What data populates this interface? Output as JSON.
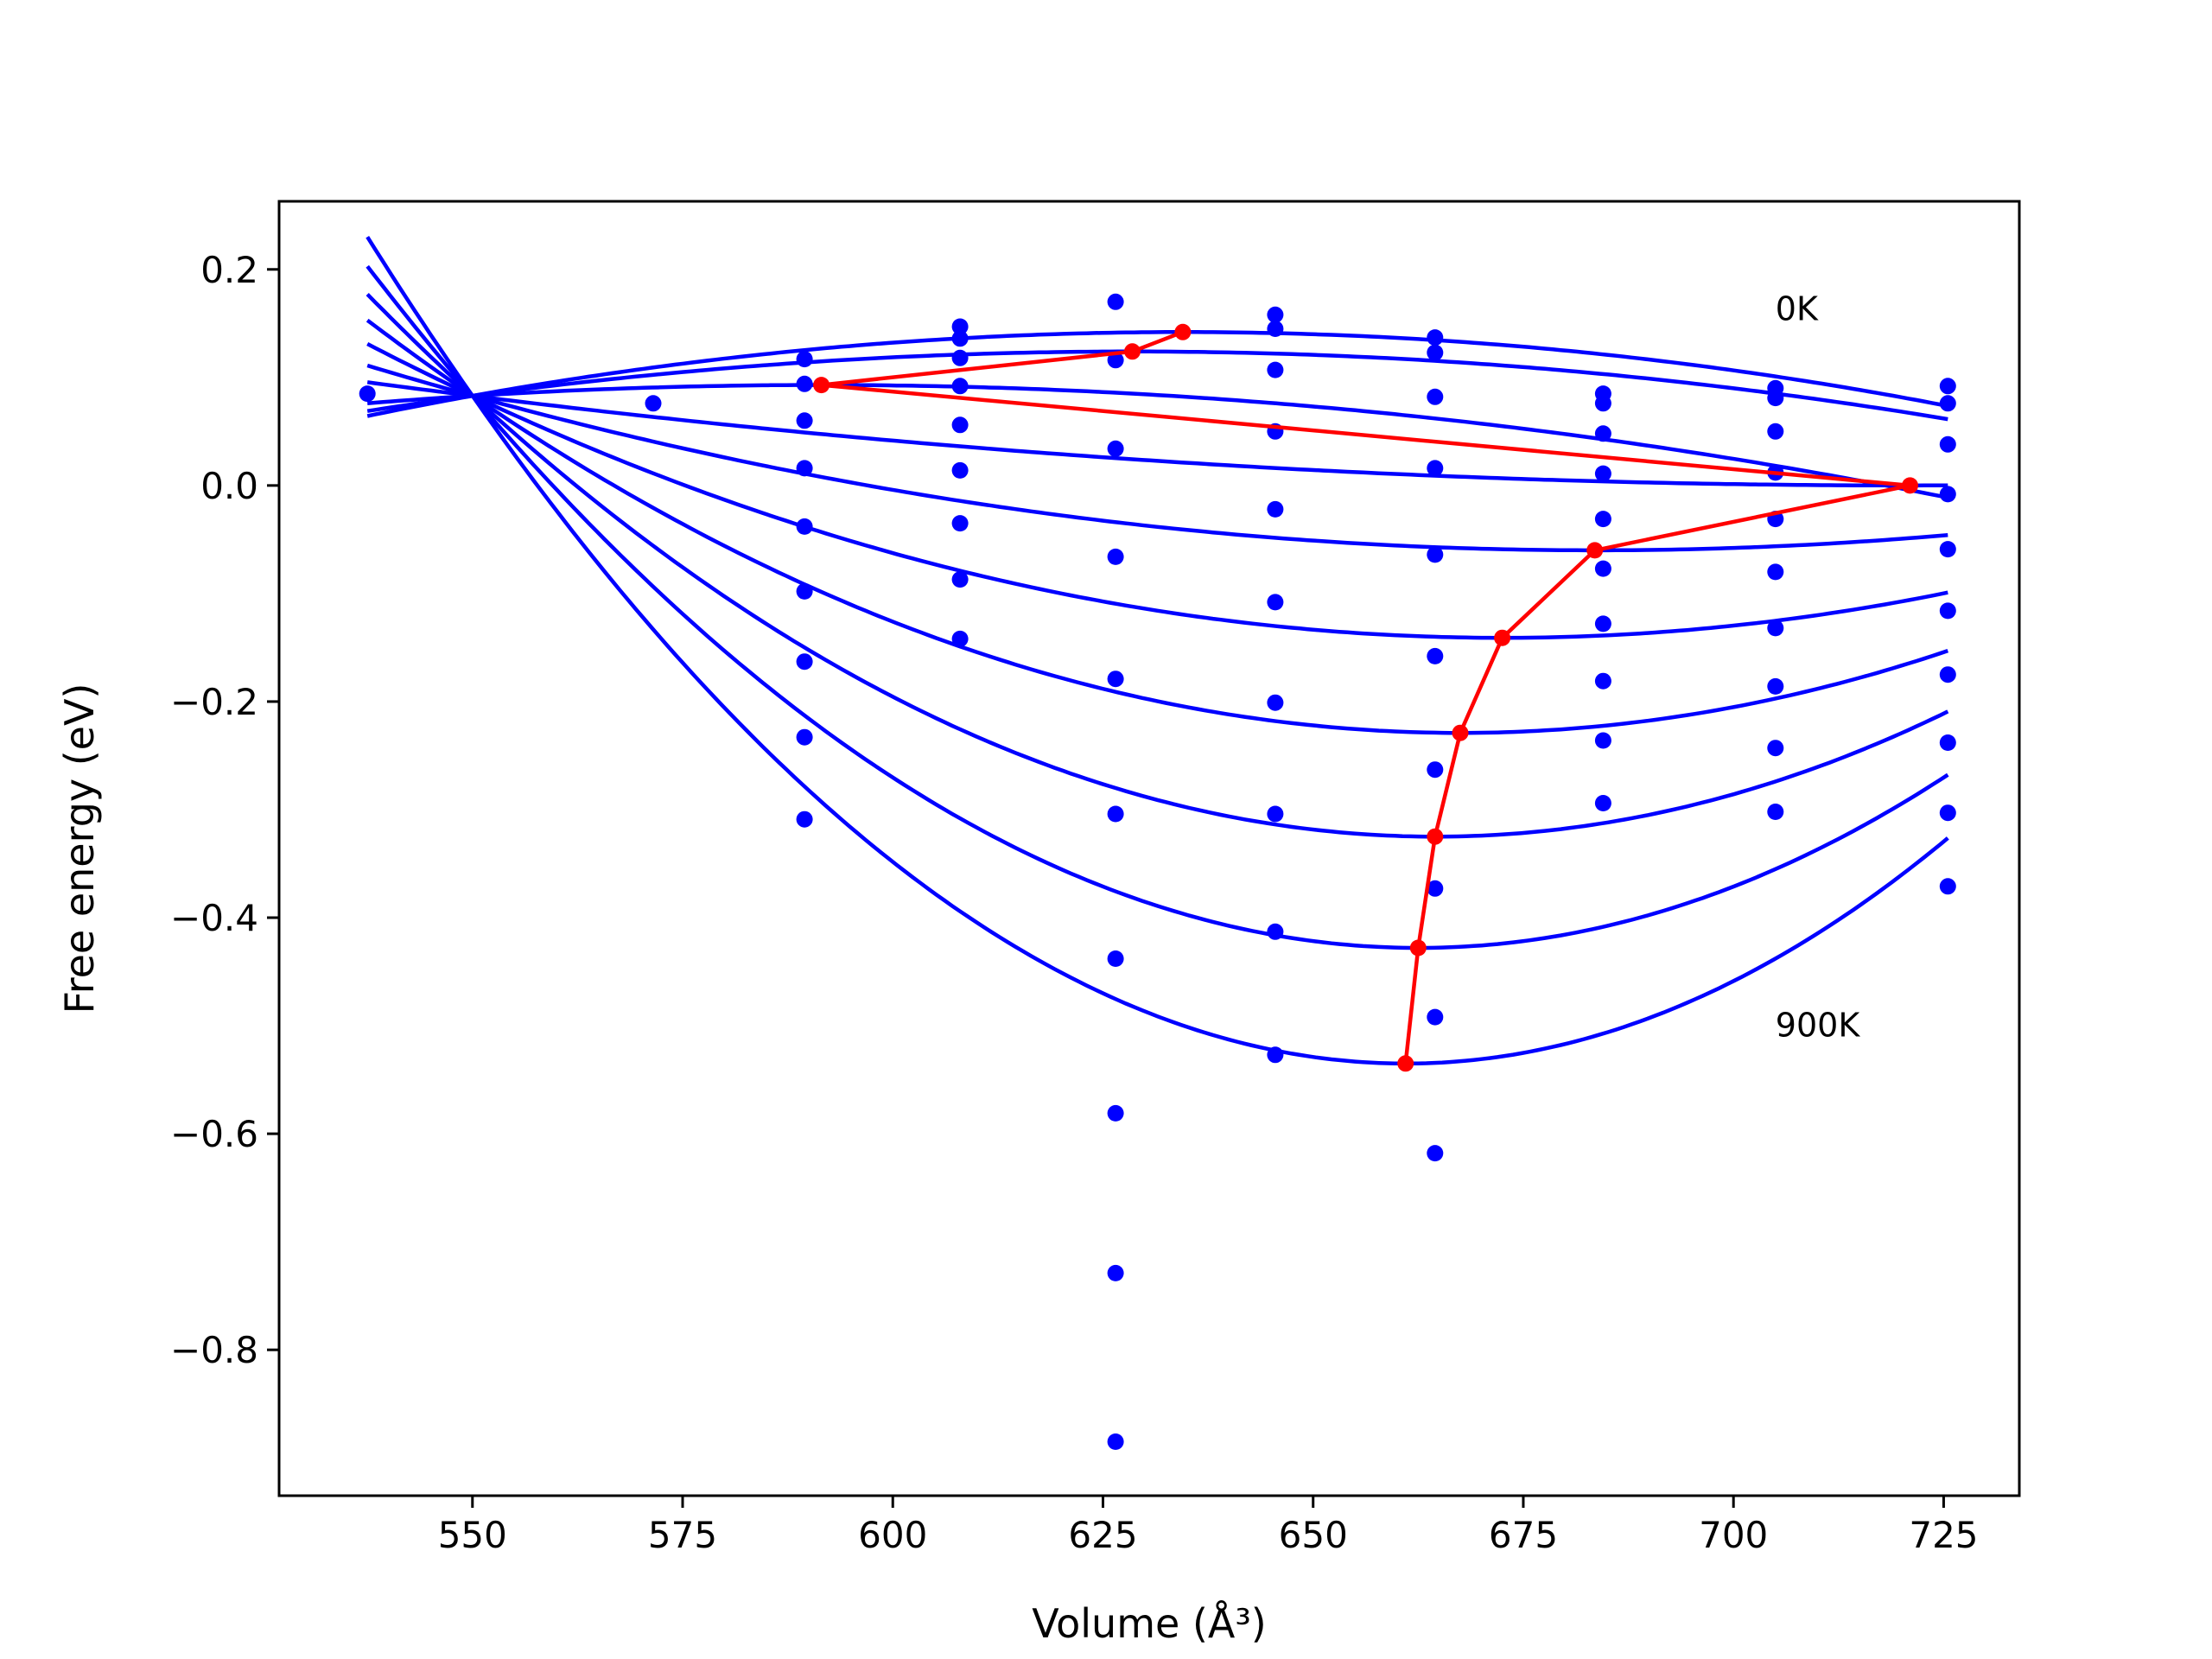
{
  "chart_data": {
    "type": "scatter",
    "title": "",
    "xlabel": "Volume (Å³)",
    "ylabel": "Free energy (eV)",
    "xlim": [
      527,
      734
    ],
    "ylim": [
      -0.935,
      0.263
    ],
    "xticks": [
      550,
      575,
      600,
      625,
      650,
      675,
      700,
      725
    ],
    "yticks": [
      -0.8,
      -0.6,
      -0.4,
      -0.2,
      0.0,
      0.2
    ],
    "xtick_labels": [
      "550",
      "575",
      "600",
      "625",
      "650",
      "675",
      "700",
      "725"
    ],
    "ytick_labels": [
      "−0.8",
      "−0.6",
      "−0.4",
      "−0.2",
      "0.0",
      "0.2"
    ],
    "grid": false,
    "legend": "none",
    "colors": {
      "curves": "#0000ff",
      "minima": "#ff0000",
      "frame": "#000000"
    },
    "annotations": [
      {
        "text": "0K",
        "x": 705,
        "y": 0.153
      },
      {
        "text": "900K",
        "x": 705,
        "y": -0.51
      }
    ],
    "curve_x_range": [
      537.5,
      725.5
    ],
    "fitted_curves": [
      {
        "vmin": 634.5,
        "fmin": 0.142
      },
      {
        "vmin": 628.5,
        "fmin": 0.124
      },
      {
        "vmin": 591.5,
        "fmin": 0.093
      },
      {
        "vmin": 721.0,
        "fmin": 0.0
      },
      {
        "vmin": 683.5,
        "fmin": -0.06
      },
      {
        "vmin": 672.5,
        "fmin": -0.141
      },
      {
        "vmin": 667.5,
        "fmin": -0.229
      },
      {
        "vmin": 664.5,
        "fmin": -0.325
      },
      {
        "vmin": 662.5,
        "fmin": -0.428
      },
      {
        "vmin": 661.0,
        "fmin": -0.535
      }
    ],
    "data_points": [
      [
        537.5,
        0.085
      ],
      [
        571.5,
        0.076
      ],
      [
        589.5,
        0.117
      ],
      [
        589.5,
        0.094
      ],
      [
        589.5,
        0.06
      ],
      [
        589.5,
        0.016
      ],
      [
        589.5,
        -0.038
      ],
      [
        589.5,
        -0.098
      ],
      [
        589.5,
        -0.163
      ],
      [
        589.5,
        -0.233
      ],
      [
        589.5,
        -0.309
      ],
      [
        608.0,
        0.147
      ],
      [
        608.0,
        0.136
      ],
      [
        608.0,
        0.118
      ],
      [
        608.0,
        0.092
      ],
      [
        608.0,
        0.056
      ],
      [
        608.0,
        0.014
      ],
      [
        608.0,
        -0.035
      ],
      [
        608.0,
        -0.087
      ],
      [
        608.0,
        -0.142
      ],
      [
        626.5,
        0.17
      ],
      [
        626.5,
        0.116
      ],
      [
        626.5,
        0.034
      ],
      [
        626.5,
        -0.066
      ],
      [
        626.5,
        -0.179
      ],
      [
        626.5,
        -0.304
      ],
      [
        626.5,
        -0.438
      ],
      [
        626.5,
        -0.581
      ],
      [
        626.5,
        -0.729
      ],
      [
        626.5,
        -0.885
      ],
      [
        645.5,
        0.158
      ],
      [
        645.5,
        0.145
      ],
      [
        645.5,
        0.107
      ],
      [
        645.5,
        0.05
      ],
      [
        645.5,
        -0.022
      ],
      [
        645.5,
        -0.108
      ],
      [
        645.5,
        -0.201
      ],
      [
        645.5,
        -0.304
      ],
      [
        645.5,
        -0.413
      ],
      [
        645.5,
        -0.527
      ],
      [
        664.5,
        0.137
      ],
      [
        664.5,
        0.123
      ],
      [
        664.5,
        0.082
      ],
      [
        664.5,
        0.016
      ],
      [
        664.5,
        -0.064
      ],
      [
        664.5,
        -0.158
      ],
      [
        664.5,
        -0.263
      ],
      [
        664.5,
        -0.373
      ],
      [
        664.5,
        -0.492
      ],
      [
        664.5,
        -0.618
      ],
      [
        684.5,
        0.085
      ],
      [
        684.5,
        0.076
      ],
      [
        684.5,
        0.048
      ],
      [
        684.5,
        0.011
      ],
      [
        684.5,
        -0.031
      ],
      [
        684.5,
        -0.077
      ],
      [
        684.5,
        -0.128
      ],
      [
        684.5,
        -0.181
      ],
      [
        684.5,
        -0.236
      ],
      [
        684.5,
        -0.294
      ],
      [
        705.0,
        0.09
      ],
      [
        705.0,
        0.081
      ],
      [
        705.0,
        0.05
      ],
      [
        705.0,
        0.012
      ],
      [
        705.0,
        -0.031
      ],
      [
        705.0,
        -0.08
      ],
      [
        705.0,
        -0.132
      ],
      [
        705.0,
        -0.186
      ],
      [
        705.0,
        -0.243
      ],
      [
        705.0,
        -0.302
      ],
      [
        725.5,
        0.092
      ],
      [
        725.5,
        0.076
      ],
      [
        725.5,
        0.038
      ],
      [
        725.5,
        -0.008
      ],
      [
        725.5,
        -0.059
      ],
      [
        725.5,
        -0.116
      ],
      [
        725.5,
        -0.175
      ],
      [
        725.5,
        -0.238
      ],
      [
        725.5,
        -0.303
      ],
      [
        725.5,
        -0.371
      ]
    ],
    "minima_path": [
      [
        634.5,
        0.142
      ],
      [
        628.5,
        0.124
      ],
      [
        591.5,
        0.093
      ],
      [
        721.0,
        0.0
      ],
      [
        683.5,
        -0.06
      ],
      [
        672.5,
        -0.141
      ],
      [
        667.5,
        -0.229
      ],
      [
        664.5,
        -0.325
      ],
      [
        662.5,
        -0.428
      ],
      [
        661.0,
        -0.535
      ]
    ]
  }
}
